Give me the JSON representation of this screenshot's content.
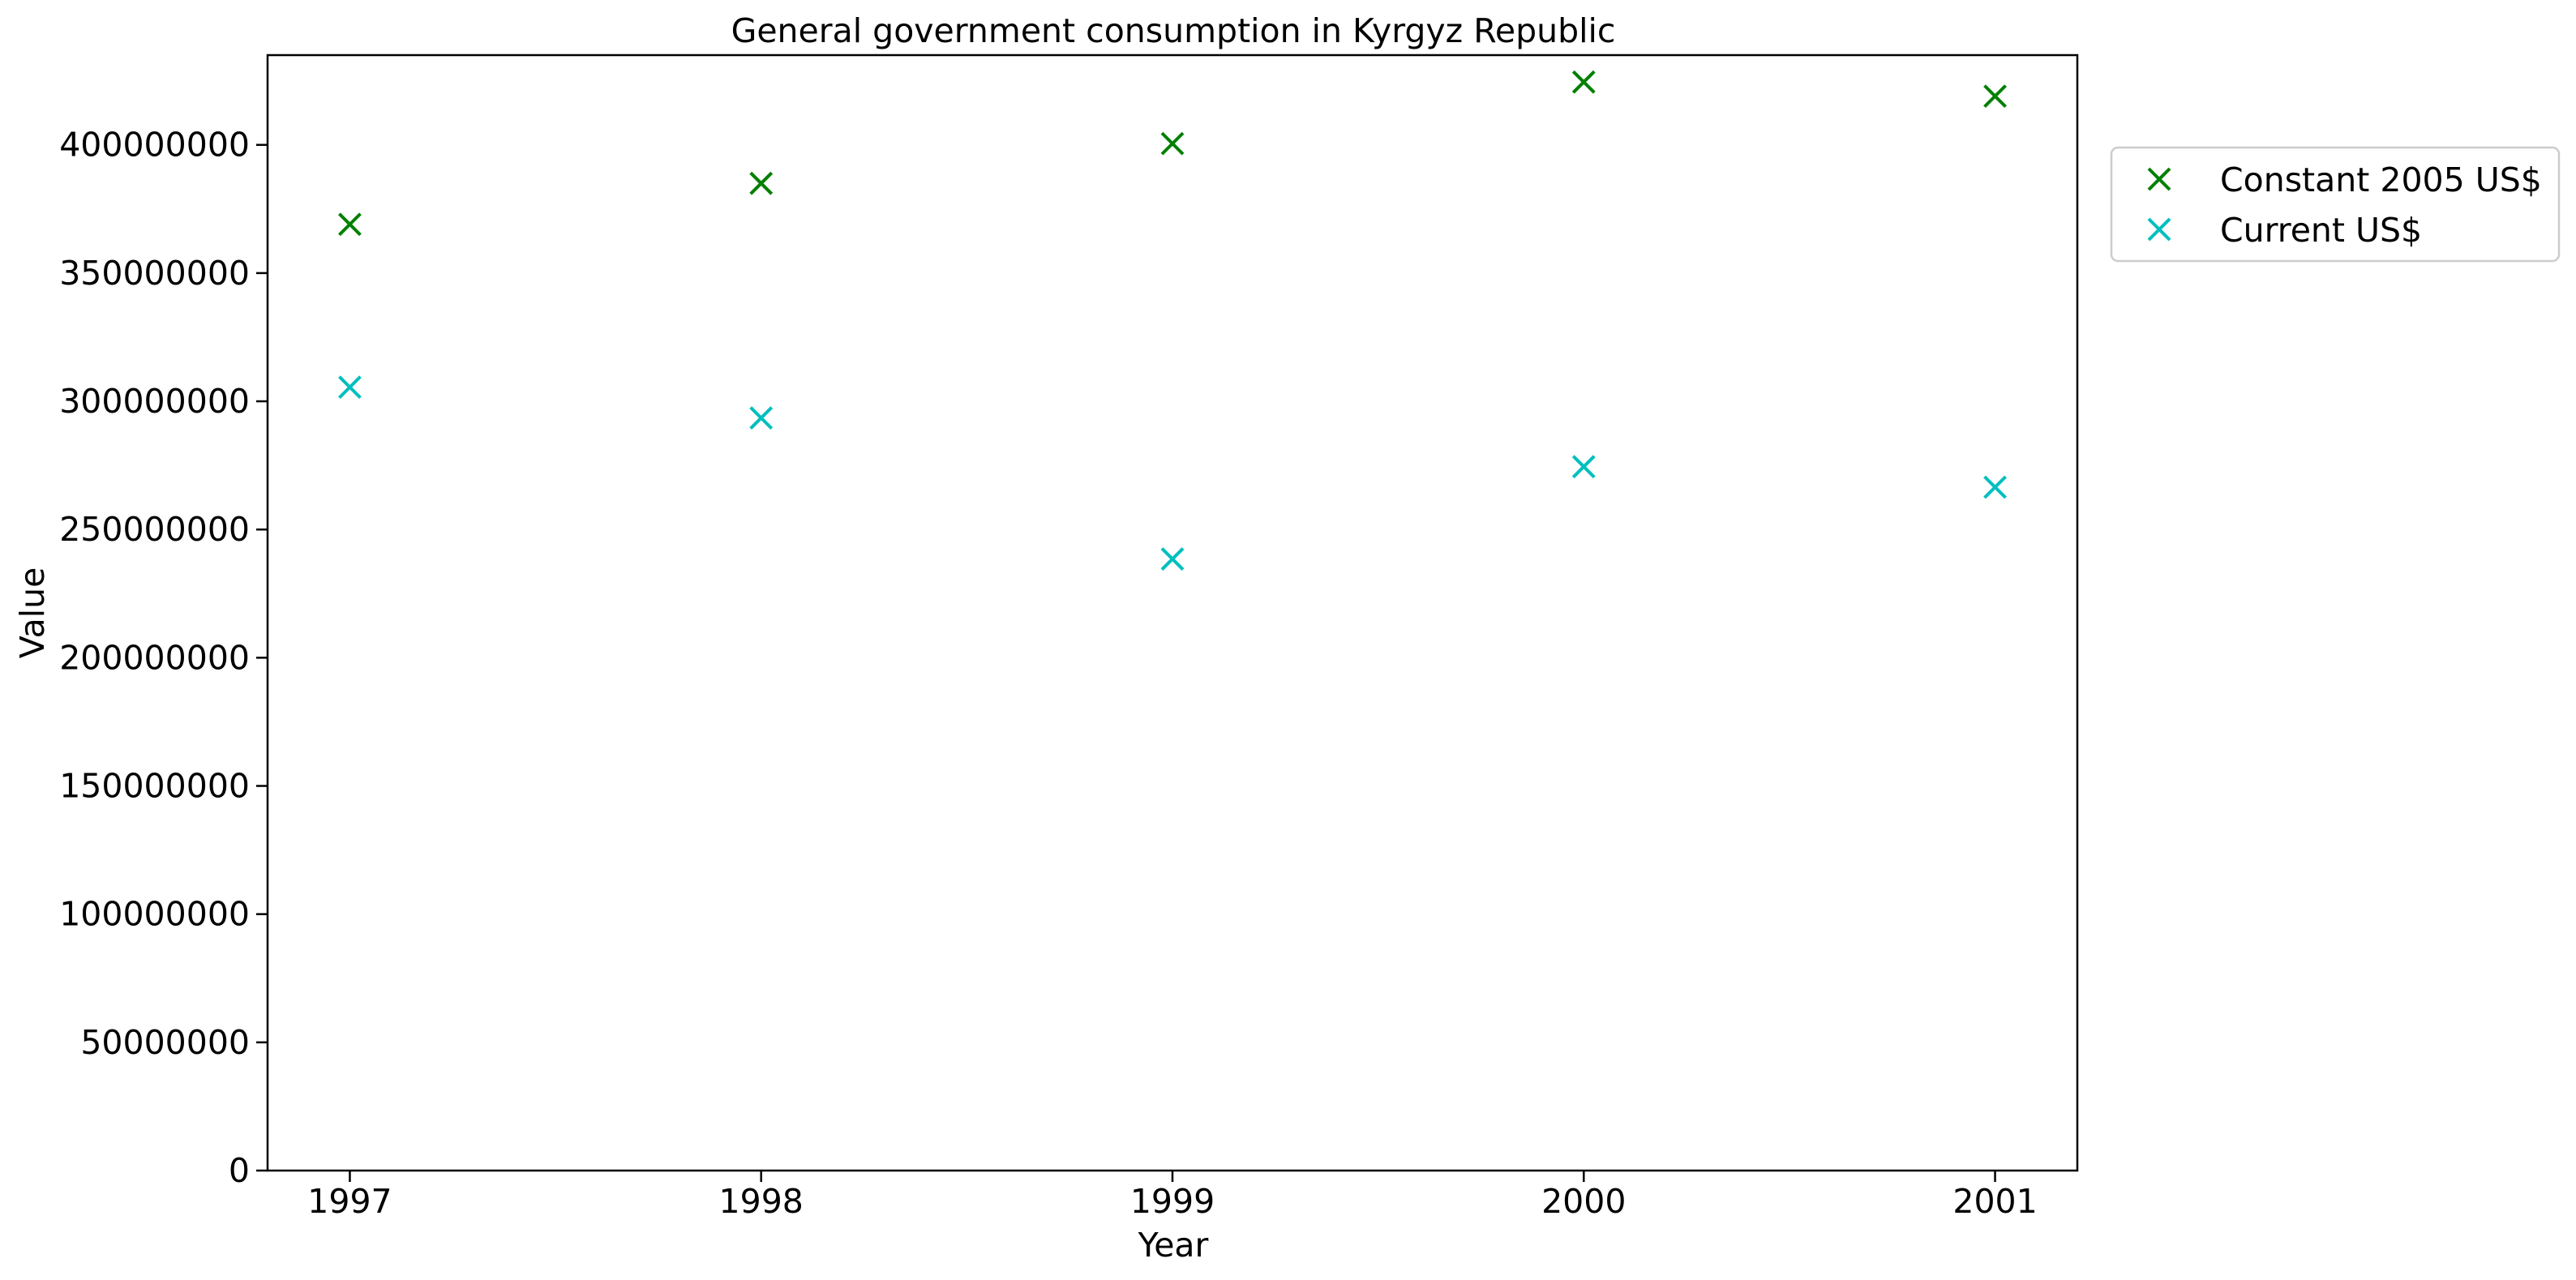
{
  "chart_data": {
    "type": "scatter",
    "title": "General government consumption in Kyrgyz Republic",
    "xlabel": "Year",
    "ylabel": "Value",
    "x": [
      1997,
      1998,
      1999,
      2000,
      2001
    ],
    "x_ticks": [
      "1997",
      "1998",
      "1999",
      "2000",
      "2001"
    ],
    "xlim": [
      1996.8,
      2001.2
    ],
    "ylim": [
      0,
      435000000
    ],
    "y_ticks": [
      0,
      50000000,
      100000000,
      150000000,
      200000000,
      250000000,
      300000000,
      350000000,
      400000000
    ],
    "y_tick_labels": [
      "0",
      "50000000",
      "100000000",
      "150000000",
      "200000000",
      "250000000",
      "300000000",
      "350000000",
      "400000000"
    ],
    "grid": false,
    "legend_position": "outside-right-top",
    "marker": "x",
    "series": [
      {
        "name": "Constant 2005 US$",
        "color": "#008000",
        "values": [
          369000000,
          385000000,
          400500000,
          424500000,
          419000000
        ]
      },
      {
        "name": "Current US$",
        "color": "#00bfbf",
        "values": [
          305500000,
          293500000,
          238500000,
          274500000,
          266500000
        ]
      }
    ]
  }
}
